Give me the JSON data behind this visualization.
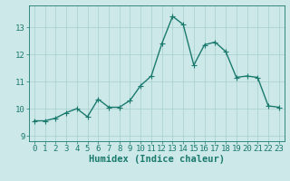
{
  "x": [
    0,
    1,
    2,
    3,
    4,
    5,
    6,
    7,
    8,
    9,
    10,
    11,
    12,
    13,
    14,
    15,
    16,
    17,
    18,
    19,
    20,
    21,
    22,
    23
  ],
  "y": [
    9.55,
    9.55,
    9.65,
    9.85,
    10.0,
    9.7,
    10.35,
    10.05,
    10.05,
    10.3,
    10.85,
    11.2,
    12.4,
    13.4,
    13.1,
    11.6,
    12.35,
    12.45,
    12.1,
    11.15,
    11.2,
    11.15,
    10.1,
    10.05
  ],
  "line_color": "#1a7a6e",
  "marker": "D",
  "marker_size": 2,
  "bg_color": "#cce8e8",
  "grid_color": "#a8cece",
  "xlabel": "Humidex (Indice chaleur)",
  "xlim": [
    -0.5,
    23.5
  ],
  "ylim": [
    8.8,
    13.8
  ],
  "yticks": [
    9,
    10,
    11,
    12,
    13
  ],
  "xticks": [
    0,
    1,
    2,
    3,
    4,
    5,
    6,
    7,
    8,
    9,
    10,
    11,
    12,
    13,
    14,
    15,
    16,
    17,
    18,
    19,
    20,
    21,
    22,
    23
  ],
  "tick_fontsize": 6.5,
  "xlabel_fontsize": 7.5,
  "line_width": 1.0
}
